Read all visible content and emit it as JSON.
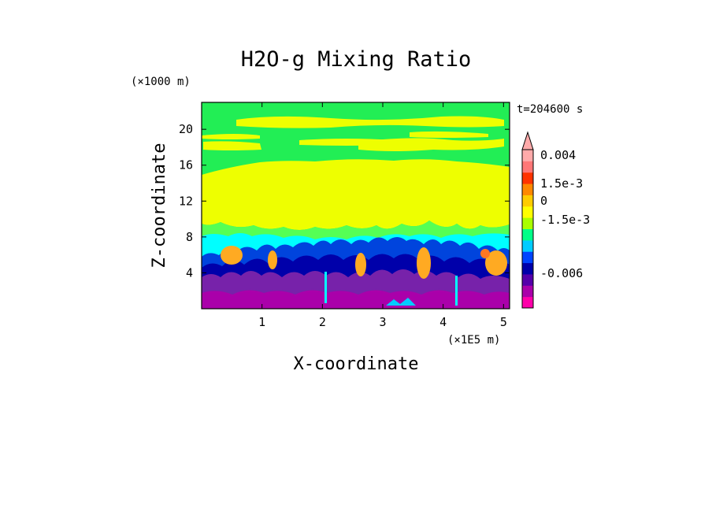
{
  "chart_data": {
    "type": "heatmap",
    "title": "H2O-g Mixing Ratio",
    "xlabel": "X-coordinate",
    "ylabel": "Z-coordinate",
    "x_unit": "(×1E5 m)",
    "y_unit": "(×1000 m)",
    "time_label": "t=204600 s",
    "xlim": [
      0,
      5.1
    ],
    "ylim": [
      0,
      23
    ],
    "xticks": [
      "1",
      "2",
      "3",
      "4",
      "5"
    ],
    "xtick_values": [
      1,
      2,
      3,
      4,
      5
    ],
    "yticks": [
      "4",
      "8",
      "12",
      "16",
      "20"
    ],
    "ytick_values": [
      4,
      8,
      12,
      16,
      20
    ],
    "colorbar": {
      "labels": [
        "0.004",
        "1.5e-3",
        "0",
        "-1.5e-3",
        "-0.006"
      ],
      "colors": [
        "#ff00aa",
        "#aa00aa",
        "#5500aa",
        "#0000aa",
        "#0044ff",
        "#00ccff",
        "#00ff88",
        "#aaff00",
        "#ffff00",
        "#ffcc00",
        "#ff8800",
        "#ff3300",
        "#ff7777",
        "#ffaaaa"
      ]
    },
    "layers": [
      {
        "name": "upper-green",
        "color": "#22ee55"
      },
      {
        "name": "yellow-band",
        "color": "#eeff00"
      },
      {
        "name": "light-green",
        "color": "#55ff55"
      },
      {
        "name": "cyan",
        "color": "#00ffff"
      },
      {
        "name": "blue",
        "color": "#0044dd"
      },
      {
        "name": "dark-blue",
        "color": "#0000aa"
      },
      {
        "name": "purple",
        "color": "#7722aa"
      },
      {
        "name": "magenta",
        "color": "#aa00aa"
      },
      {
        "name": "orange",
        "color": "#ffaa22"
      }
    ]
  }
}
